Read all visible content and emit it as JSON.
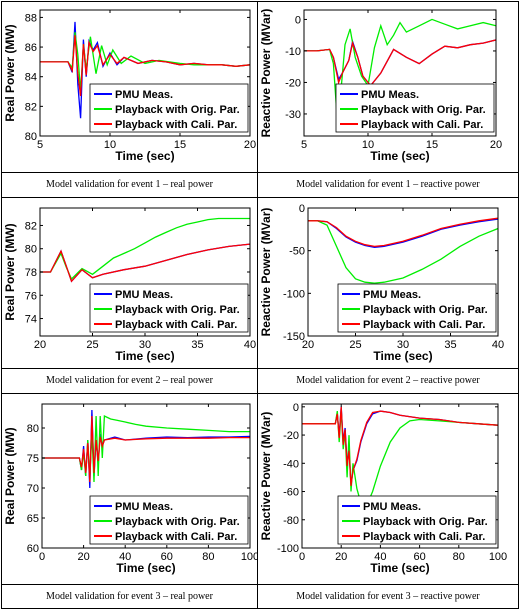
{
  "colors": {
    "pmu": "#0000ff",
    "orig": "#00ee00",
    "cali": "#ff0000",
    "axes": "#000000"
  },
  "captions": [
    "Model validation for event 1 – real power",
    "Model validation for event 1 – reactive power",
    "Model validation for event 2 – real power",
    "Model validation for event 2 – reactive power",
    "Model validation for event 3 – real power",
    "Model validation for event 3 – reactive power"
  ],
  "chart_data": [
    {
      "type": "line",
      "xlabel": "Time (sec)",
      "ylabel": "Real Power (MW)",
      "xlim": [
        5,
        20
      ],
      "ylim": [
        80,
        88.5
      ],
      "xticks": [
        5,
        10,
        15,
        20
      ],
      "yticks": [
        80,
        82,
        84,
        86,
        88
      ],
      "legend": "bottom-right",
      "series": [
        {
          "name": "PMU Meas.",
          "color": "pmu",
          "x": [
            5,
            7,
            7.3,
            7.5,
            7.7,
            7.9,
            8.1,
            8.3,
            8.5,
            8.8,
            9.1,
            9.5,
            10,
            10.5,
            11,
            12,
            13,
            14,
            15,
            16,
            17,
            18,
            19,
            20
          ],
          "y": [
            85,
            85,
            84.3,
            87.7,
            83.5,
            81.2,
            86.5,
            84,
            86.4,
            85.8,
            86.3,
            84.7,
            85.6,
            84.8,
            85.3,
            84.9,
            85.1,
            85,
            84.8,
            84.9,
            84.8,
            84.8,
            84.7,
            84.8
          ]
        },
        {
          "name": "Playback with Orig. Par.",
          "color": "orig",
          "x": [
            5,
            7,
            7.3,
            7.5,
            7.7,
            7.9,
            8.1,
            8.3,
            8.6,
            9,
            9.4,
            9.8,
            10.2,
            10.8,
            11.5,
            12.5,
            13.5,
            15,
            16,
            17,
            18,
            19,
            20
          ],
          "y": [
            85,
            85,
            84.6,
            87,
            85.5,
            83,
            86.2,
            84.5,
            86.7,
            84.2,
            86.1,
            84.8,
            85.8,
            84.9,
            85.4,
            84.9,
            85.1,
            84.9,
            84.8,
            84.8,
            84.8,
            84.7,
            84.8
          ]
        },
        {
          "name": "Playback with Cali. Par.",
          "color": "cali",
          "x": [
            5,
            7,
            7.3,
            7.5,
            7.7,
            7.9,
            8.1,
            8.3,
            8.5,
            8.8,
            9.1,
            9.5,
            10,
            10.5,
            11,
            12,
            13,
            14,
            15,
            16,
            17,
            18,
            19,
            20
          ],
          "y": [
            85,
            85,
            84.4,
            86.8,
            84.2,
            82.7,
            86.2,
            84.1,
            86.3,
            85.7,
            86.1,
            84.8,
            85.5,
            84.9,
            85.3,
            84.9,
            85.1,
            85,
            84.8,
            84.9,
            84.8,
            84.8,
            84.7,
            84.8
          ]
        }
      ]
    },
    {
      "type": "line",
      "xlabel": "Time (sec)",
      "ylabel": "Reactive Power (MVar)",
      "xlim": [
        5,
        20
      ],
      "ylim": [
        -37,
        3
      ],
      "xticks": [
        5,
        10,
        15,
        20
      ],
      "yticks": [
        -30,
        -20,
        -10,
        0
      ],
      "legend": "bottom-right",
      "series": [
        {
          "name": "PMU Meas.",
          "color": "pmu",
          "x": [
            5,
            6,
            7,
            7.3,
            7.7,
            8,
            8.5,
            8.8,
            9.2,
            9.6,
            10.2,
            11,
            12,
            13,
            14,
            15,
            16,
            17,
            18,
            19,
            20
          ],
          "y": [
            -10,
            -10,
            -9.5,
            -12,
            -19,
            -17,
            -13,
            -7,
            -12,
            -18,
            -21,
            -17,
            -9.5,
            -12,
            -14,
            -11,
            -8.5,
            -9,
            -8,
            -7.5,
            -6.5
          ]
        },
        {
          "name": "Playback with Orig. Par.",
          "color": "orig",
          "x": [
            5,
            6,
            7,
            7.3,
            7.6,
            7.9,
            8.2,
            8.6,
            9,
            9.5,
            10,
            10.5,
            11,
            11.5,
            12,
            12.5,
            13,
            14,
            15,
            16,
            17,
            18,
            19,
            20
          ],
          "y": [
            -10,
            -10,
            -9.5,
            -14,
            -32,
            -22,
            -8,
            -3,
            -12,
            -18,
            -21,
            -9,
            -2,
            -8,
            -5,
            -1,
            -4,
            -2,
            0,
            -1.5,
            -3,
            -2,
            -1,
            -2
          ]
        },
        {
          "name": "Playback with Cali. Par.",
          "color": "cali",
          "x": [
            5,
            6,
            7,
            7.3,
            7.7,
            8,
            8.5,
            8.8,
            9.2,
            9.6,
            10.2,
            11,
            12,
            13,
            14,
            15,
            16,
            17,
            18,
            19,
            20
          ],
          "y": [
            -10,
            -10,
            -9.5,
            -12,
            -20,
            -17,
            -13,
            -7.5,
            -12,
            -18,
            -21,
            -17,
            -9.5,
            -12,
            -14,
            -11,
            -8.5,
            -9,
            -8,
            -7.5,
            -6.5
          ]
        }
      ]
    },
    {
      "type": "line",
      "xlabel": "Time (sec)",
      "ylabel": "Real Power (MW)",
      "xlim": [
        20,
        40
      ],
      "ylim": [
        72.5,
        83.5
      ],
      "xticks": [
        20,
        25,
        30,
        35,
        40
      ],
      "yticks": [
        74,
        76,
        78,
        80,
        82
      ],
      "legend": "bottom-right",
      "series": [
        {
          "name": "PMU Meas.",
          "color": "pmu",
          "x": [
            20,
            21,
            22,
            22.5,
            23,
            24,
            25,
            26,
            28,
            30,
            32,
            34,
            36,
            38,
            40
          ],
          "y": [
            78,
            78,
            79.8,
            78.5,
            77.2,
            78.2,
            77.5,
            77.8,
            78.2,
            78.5,
            79,
            79.5,
            79.9,
            80.2,
            80.4
          ]
        },
        {
          "name": "Playback with Orig. Par.",
          "color": "orig",
          "x": [
            20,
            21,
            22,
            22.5,
            23,
            24,
            25,
            26,
            27,
            28,
            29,
            30,
            31,
            32,
            33,
            34,
            35,
            36,
            37,
            38,
            39,
            40
          ],
          "y": [
            78,
            78,
            79.6,
            78.4,
            77.4,
            78.3,
            77.8,
            78.5,
            79.2,
            79.6,
            80,
            80.5,
            81,
            81.4,
            81.8,
            82.1,
            82.3,
            82.5,
            82.6,
            82.6,
            82.6,
            82.6
          ]
        },
        {
          "name": "Playback with Cali. Par.",
          "color": "cali",
          "x": [
            20,
            21,
            22,
            22.5,
            23,
            24,
            25,
            26,
            28,
            30,
            32,
            34,
            36,
            38,
            40
          ],
          "y": [
            78,
            78,
            79.8,
            78.5,
            77.2,
            78.2,
            77.5,
            77.8,
            78.2,
            78.5,
            79,
            79.5,
            79.9,
            80.2,
            80.4
          ]
        }
      ]
    },
    {
      "type": "line",
      "xlabel": "Time (sec)",
      "ylabel": "Reactive Power (MVar)",
      "xlim": [
        20,
        40
      ],
      "ylim": [
        -150,
        0
      ],
      "xticks": [
        20,
        25,
        30,
        35,
        40
      ],
      "yticks": [
        -150,
        -100,
        -50,
        0
      ],
      "legend": "bottom-right",
      "series": [
        {
          "name": "PMU Meas.",
          "color": "pmu",
          "x": [
            20,
            21,
            22,
            23,
            24,
            25,
            26,
            27,
            28,
            30,
            32,
            34,
            36,
            38,
            40
          ],
          "y": [
            -15,
            -15,
            -16,
            -24,
            -34,
            -40,
            -44,
            -46,
            -45,
            -40,
            -33,
            -25,
            -20,
            -16,
            -13
          ]
        },
        {
          "name": "Playback with Orig. Par.",
          "color": "orig",
          "x": [
            20,
            21,
            22,
            23,
            24,
            25,
            26,
            27,
            28,
            30,
            32,
            34,
            36,
            38,
            40
          ],
          "y": [
            -15,
            -15,
            -20,
            -45,
            -70,
            -83,
            -87,
            -88,
            -87,
            -82,
            -72,
            -60,
            -45,
            -33,
            -24
          ]
        },
        {
          "name": "Playback with Cali. Par.",
          "color": "cali",
          "x": [
            20,
            21,
            22,
            23,
            24,
            25,
            26,
            27,
            28,
            30,
            32,
            34,
            36,
            38,
            40
          ],
          "y": [
            -15,
            -15,
            -16,
            -23,
            -33,
            -39,
            -43,
            -45,
            -44,
            -39,
            -32,
            -24,
            -19,
            -15,
            -12
          ]
        }
      ]
    },
    {
      "type": "line",
      "xlabel": "Time (sec)",
      "ylabel": "Real Power (MW)",
      "xlim": [
        0,
        100
      ],
      "ylim": [
        60,
        84
      ],
      "xticks": [
        0,
        20,
        40,
        60,
        80,
        100
      ],
      "yticks": [
        60,
        65,
        70,
        75,
        80
      ],
      "legend": "bottom-right",
      "series": [
        {
          "name": "PMU Meas.",
          "color": "pmu",
          "x": [
            0,
            10,
            18,
            19,
            20,
            21,
            22,
            23,
            24,
            25,
            26,
            27,
            28,
            29,
            30,
            35,
            40,
            50,
            60,
            70,
            80,
            90,
            100
          ],
          "y": [
            75,
            75,
            75,
            73,
            77,
            72,
            78,
            70,
            83,
            72,
            78,
            74,
            79,
            77,
            78,
            78.5,
            78,
            78.3,
            78.5,
            78.4,
            78.5,
            78.5,
            78.6
          ]
        },
        {
          "name": "Playback with Orig. Par.",
          "color": "orig",
          "x": [
            0,
            10,
            18,
            19,
            20,
            21,
            22,
            23,
            24,
            25,
            26,
            27,
            28,
            29,
            30,
            33,
            36,
            40,
            45,
            50,
            60,
            70,
            80,
            90,
            100
          ],
          "y": [
            75,
            75,
            75,
            73,
            76,
            72,
            78,
            72,
            79,
            71,
            82,
            72,
            82,
            75,
            82,
            81.5,
            81.3,
            81,
            80.6,
            80.3,
            80,
            79.8,
            79.6,
            79.4,
            79.4
          ]
        },
        {
          "name": "Playback with Cali. Par.",
          "color": "cali",
          "x": [
            0,
            10,
            18,
            19,
            20,
            21,
            22,
            23,
            24,
            25,
            26,
            27,
            28,
            29,
            30,
            35,
            40,
            50,
            60,
            70,
            80,
            90,
            100
          ],
          "y": [
            75,
            75,
            75,
            73.5,
            76.5,
            72.5,
            77.5,
            71,
            82,
            72.5,
            78,
            74.5,
            78.5,
            77,
            78,
            78.3,
            78,
            78.2,
            78.3,
            78.3,
            78.3,
            78.4,
            78.4
          ]
        }
      ]
    },
    {
      "type": "line",
      "xlabel": "Time (sec)",
      "ylabel": "Reactive Power (MVar)",
      "xlim": [
        0,
        100
      ],
      "ylim": [
        -100,
        2
      ],
      "xticks": [
        0,
        20,
        40,
        60,
        80,
        100
      ],
      "yticks": [
        -100,
        -80,
        -60,
        -40,
        -20,
        0
      ],
      "legend": "bottom-right",
      "series": [
        {
          "name": "PMU Meas.",
          "color": "pmu",
          "x": [
            0,
            10,
            17,
            18,
            19,
            20,
            21,
            22,
            23,
            24,
            25,
            26,
            28,
            30,
            33,
            36,
            40,
            45,
            50,
            60,
            70,
            80,
            90,
            100
          ],
          "y": [
            -12,
            -12,
            -12,
            -5,
            -20,
            0,
            -25,
            -15,
            -40,
            -30,
            -55,
            -45,
            -38,
            -25,
            -12,
            -5,
            -3,
            -4,
            -6,
            -8,
            -9,
            -11,
            -12,
            -13
          ]
        },
        {
          "name": "Playback with Orig. Par.",
          "color": "orig",
          "x": [
            0,
            10,
            17,
            18,
            19,
            20,
            21,
            22,
            23,
            24,
            25,
            26,
            28,
            30,
            33,
            36,
            40,
            45,
            50,
            55,
            60,
            70,
            80,
            90,
            100
          ],
          "y": [
            -12,
            -12,
            -12,
            -3,
            -25,
            -2,
            -30,
            -18,
            -50,
            -20,
            -60,
            -40,
            -58,
            -68,
            -70,
            -60,
            -42,
            -25,
            -15,
            -10,
            -9,
            -10,
            -11,
            -12,
            -13
          ]
        },
        {
          "name": "Playback with Cali. Par.",
          "color": "cali",
          "x": [
            0,
            10,
            17,
            18,
            19,
            20,
            21,
            22,
            23,
            24,
            25,
            26,
            28,
            30,
            33,
            36,
            40,
            45,
            50,
            60,
            70,
            80,
            90,
            100
          ],
          "y": [
            -12,
            -12,
            -12,
            -5,
            -22,
            0,
            -27,
            -16,
            -42,
            -31,
            -56,
            -45,
            -37,
            -24,
            -11,
            -4,
            -3,
            -4,
            -6,
            -8,
            -9,
            -11,
            -12,
            -13
          ]
        }
      ]
    }
  ]
}
